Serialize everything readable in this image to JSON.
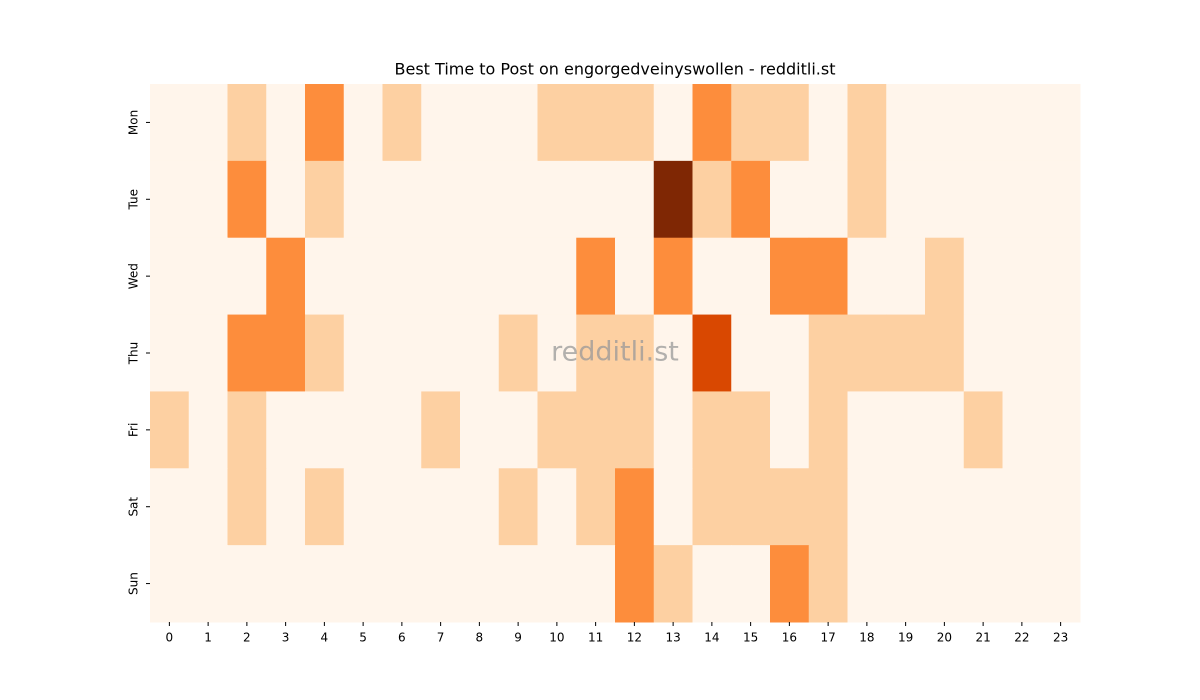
{
  "chart_data": {
    "type": "heatmap",
    "title": "Best Time to Post on engorgedveinyswollen - redditli.st",
    "watermark": "redditli.st",
    "x": [
      0,
      1,
      2,
      3,
      4,
      5,
      6,
      7,
      8,
      9,
      10,
      11,
      12,
      13,
      14,
      15,
      16,
      17,
      18,
      19,
      20,
      21,
      22,
      23
    ],
    "y": [
      "Mon",
      "Tue",
      "Wed",
      "Thu",
      "Fri",
      "Sat",
      "Sun"
    ],
    "values": [
      [
        0,
        0,
        1,
        0,
        2,
        0,
        1,
        0,
        0,
        0,
        1,
        1,
        1,
        0,
        2,
        1,
        1,
        0,
        1,
        0,
        0,
        0,
        0,
        0
      ],
      [
        0,
        0,
        2,
        0,
        1,
        0,
        0,
        0,
        0,
        0,
        0,
        0,
        0,
        4,
        1,
        2,
        0,
        0,
        1,
        0,
        0,
        0,
        0,
        0
      ],
      [
        0,
        0,
        0,
        2,
        0,
        0,
        0,
        0,
        0,
        0,
        0,
        2,
        0,
        2,
        0,
        0,
        2,
        2,
        0,
        0,
        1,
        0,
        0,
        0
      ],
      [
        0,
        0,
        2,
        2,
        1,
        0,
        0,
        0,
        0,
        1,
        0,
        1,
        1,
        0,
        3,
        0,
        0,
        1,
        1,
        1,
        1,
        0,
        0,
        0
      ],
      [
        1,
        0,
        1,
        0,
        0,
        0,
        0,
        1,
        0,
        0,
        1,
        1,
        1,
        0,
        1,
        1,
        0,
        1,
        0,
        0,
        0,
        1,
        0,
        0
      ],
      [
        0,
        0,
        1,
        0,
        1,
        0,
        0,
        0,
        0,
        1,
        0,
        1,
        2,
        0,
        1,
        1,
        1,
        1,
        0,
        0,
        0,
        0,
        0,
        0
      ],
      [
        0,
        0,
        0,
        0,
        0,
        0,
        0,
        0,
        0,
        0,
        0,
        0,
        2,
        1,
        0,
        0,
        2,
        1,
        0,
        0,
        0,
        0,
        0,
        0
      ]
    ],
    "zlim": [
      0,
      4
    ],
    "colormap": [
      "#fff5eb",
      "#fdd0a2",
      "#fd8d3c",
      "#d94801",
      "#7f2704"
    ]
  }
}
